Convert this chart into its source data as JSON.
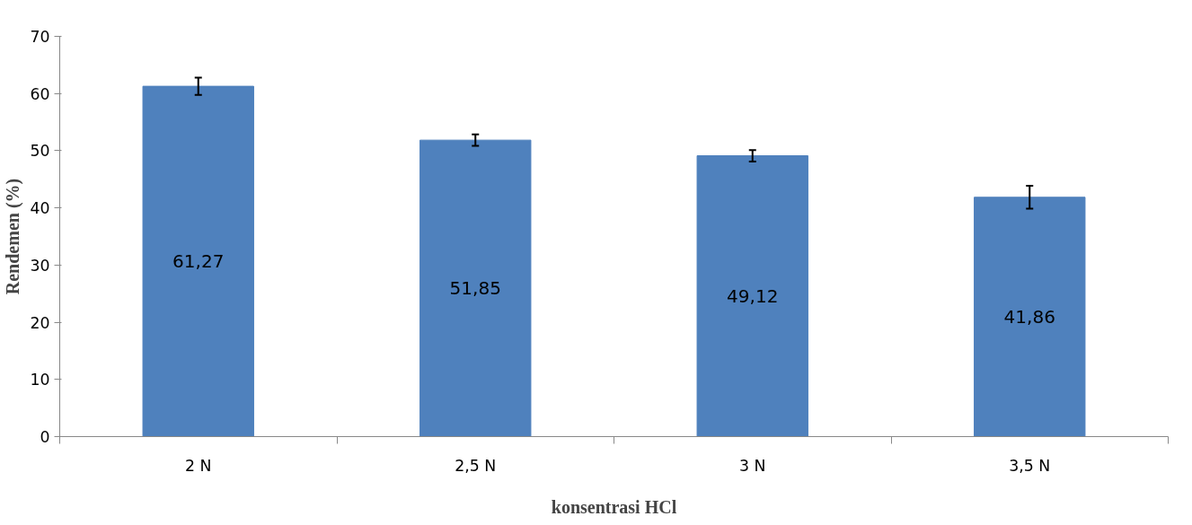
{
  "chart_data": {
    "type": "bar",
    "xlabel": "konsentrasi HCl",
    "ylabel": "Rendemen (%)",
    "categories": [
      "2 N",
      "2,5 N",
      "3 N",
      "3,5 N"
    ],
    "values": [
      61.27,
      51.85,
      49.12,
      41.86
    ],
    "color": "#4f81bd",
    "errors": [
      1.5,
      1,
      1,
      2
    ],
    "value_labels": [
      "61,27",
      "51,85",
      "49,12",
      "41,86"
    ],
    "ylim": [
      0,
      70
    ],
    "yticks": [
      0,
      10,
      20,
      30,
      40,
      50,
      60,
      70
    ],
    "grid": false
  }
}
